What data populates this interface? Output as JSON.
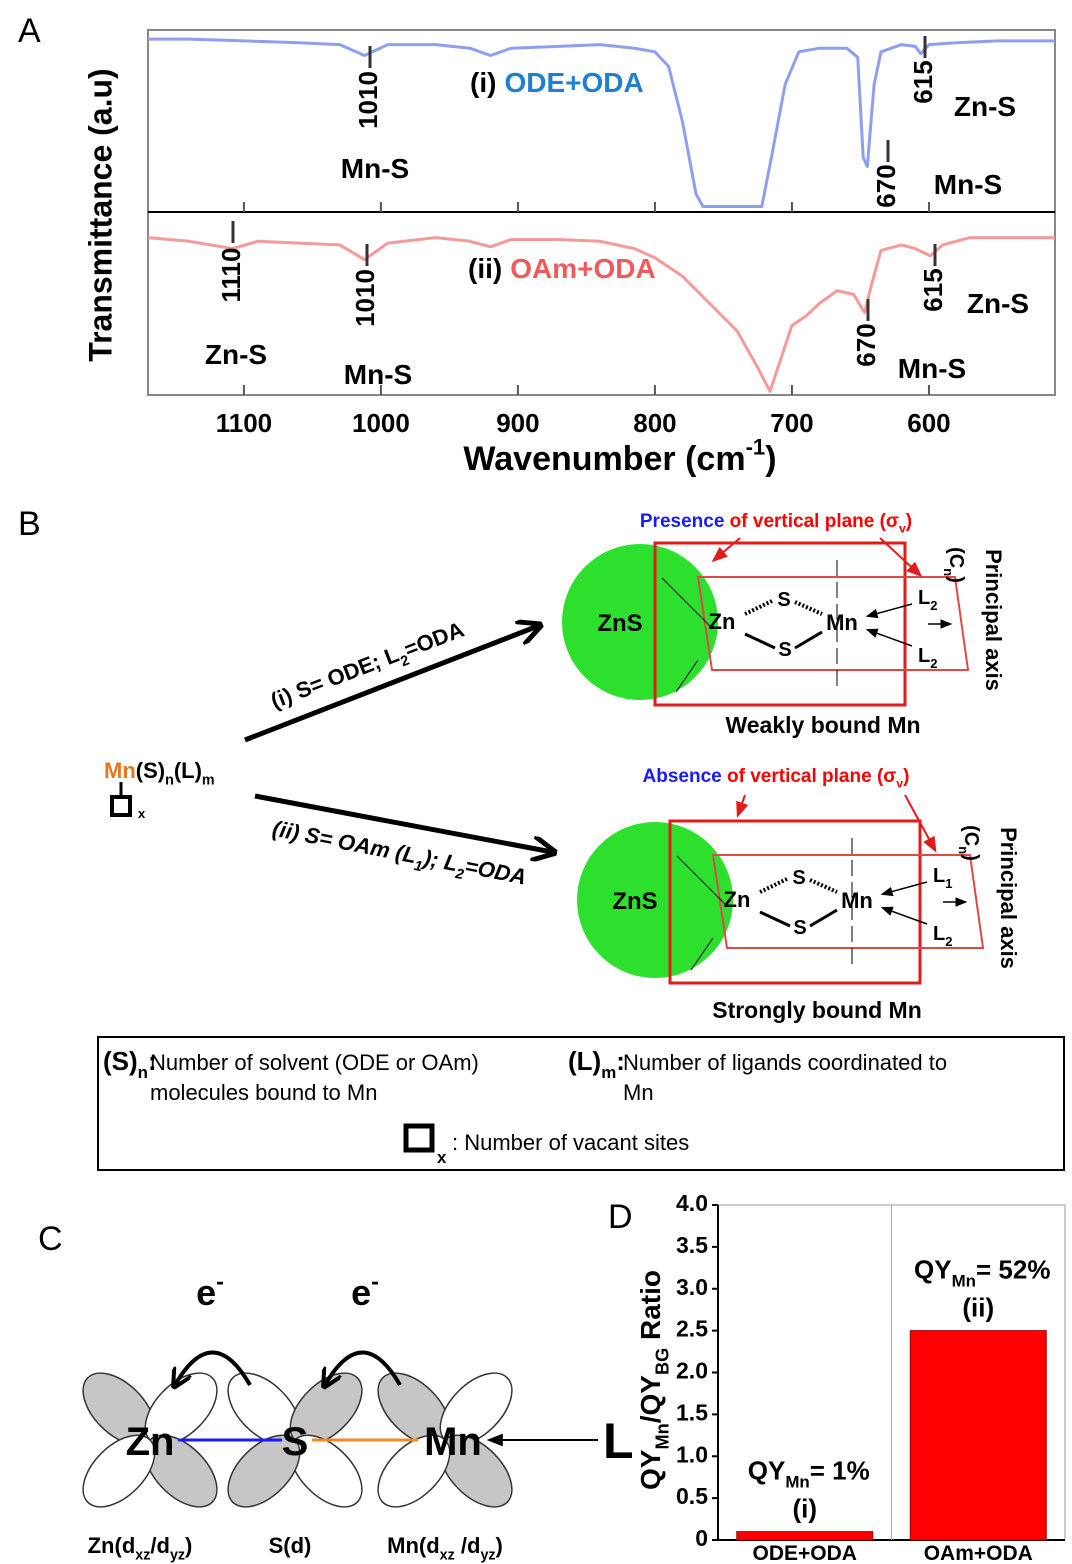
{
  "panel_labels": [
    "A",
    "B",
    "C",
    "D"
  ],
  "chart_data": [
    {
      "type": "line",
      "ylabel": "Transmittance (a.u)",
      "xlabel": [
        {
          "t": "Wavenumber (cm"
        },
        {
          "sup": "-1"
        },
        {
          "t": ")"
        }
      ],
      "xlim": [
        1170,
        508
      ],
      "xticks": [
        1100,
        1000,
        900,
        800,
        700,
        600
      ],
      "ylim": [
        0,
        100
      ],
      "series": [
        {
          "name": "ODE+ODA",
          "label": "(i)",
          "color": "#8f9ff0",
          "label_color": "#1f7fd2",
          "x": [
            1170,
            1140,
            1100,
            1060,
            1030,
            1012,
            995,
            960,
            935,
            920,
            905,
            870,
            840,
            815,
            800,
            790,
            780,
            770,
            765,
            740,
            722,
            715,
            705,
            695,
            680,
            660,
            652,
            648,
            645,
            640,
            635,
            620,
            610,
            606,
            600,
            580,
            550,
            530,
            508
          ],
          "values": [
            95,
            95,
            94,
            93,
            92,
            86,
            92,
            92,
            90,
            86,
            90,
            91,
            92,
            90,
            88,
            80,
            50,
            10,
            3,
            3,
            3,
            30,
            70,
            88,
            90,
            90,
            85,
            30,
            25,
            70,
            88,
            92,
            91,
            87,
            92,
            93,
            94,
            94,
            94
          ],
          "annotations": [
            {
              "value": 1010,
              "label": "Mn-S"
            },
            {
              "value": 670,
              "label": "Mn-S"
            },
            {
              "value": 615,
              "label": "Zn-S"
            }
          ]
        },
        {
          "name": "OAm+ODA",
          "label": "(ii)",
          "color": "#f49a9a",
          "label_color": "#f05a5a",
          "x": [
            1170,
            1140,
            1108,
            1090,
            1060,
            1030,
            1012,
            995,
            960,
            935,
            920,
            905,
            870,
            840,
            815,
            800,
            780,
            760,
            740,
            725,
            716,
            708,
            700,
            690,
            680,
            667,
            655,
            647,
            642,
            635,
            620,
            610,
            599,
            590,
            570,
            540,
            508
          ],
          "values": [
            86,
            84,
            80,
            84,
            83,
            82,
            74,
            83,
            86,
            84,
            81,
            85,
            85,
            84,
            80,
            75,
            65,
            50,
            35,
            15,
            2,
            20,
            38,
            43,
            50,
            57,
            55,
            45,
            60,
            79,
            82,
            80,
            76,
            82,
            86,
            86,
            86
          ],
          "annotations": [
            {
              "value": 1110,
              "label": "Zn-S"
            },
            {
              "value": 1010,
              "label": "Mn-S"
            },
            {
              "value": 670,
              "label": "Mn-S"
            },
            {
              "value": 615,
              "label": "Zn-S"
            }
          ]
        }
      ]
    },
    {
      "type": "bar",
      "ylabel": [
        {
          "t": "QY"
        },
        {
          "sub": "Mn"
        },
        {
          "t": "/QY"
        },
        {
          "sub": "BG"
        },
        {
          "t": " Ratio"
        }
      ],
      "categories": [
        "ODE+ODA",
        "OAm+ODA"
      ],
      "values": [
        0.1,
        2.5
      ],
      "color": "#ff0000",
      "bar_labels": [
        "(i)",
        "(ii)"
      ],
      "annotations": [
        [
          {
            "t": "QY"
          },
          {
            "sub": "Mn"
          },
          {
            "t": "= 1%"
          }
        ],
        [
          {
            "t": "QY"
          },
          {
            "sub": "Mn"
          },
          {
            "t": "= 52%"
          }
        ]
      ],
      "ylim": [
        0,
        4
      ],
      "yticks": [
        0,
        0.5,
        {
          "value": 1,
          "label": "1.0"
        },
        1.5,
        {
          "value": 2,
          "label": "2.0"
        },
        2.5,
        {
          "value": 3,
          "label": "3.0"
        },
        3.5,
        {
          "value": 4,
          "label": "4.0"
        }
      ]
    }
  ],
  "diagram_b": {
    "routes": [
      [
        {
          "t": "(i) S= ODE; L"
        },
        {
          "sub": "2"
        },
        {
          "t": "=ODA"
        }
      ],
      [
        {
          "t": "(ii) S= OAm (L"
        },
        {
          "sub": "1"
        },
        {
          "t": "); L"
        },
        {
          "sub": "2"
        },
        {
          "t": "=ODA"
        }
      ]
    ],
    "precursor": [
      {
        "t": "Mn",
        "color": "#e8761e"
      },
      {
        "t": "(S)"
      },
      {
        "sub": "n"
      },
      {
        "t": "(L)"
      },
      {
        "sub": "m"
      }
    ],
    "vacancy": [
      {
        "sub": "x"
      }
    ],
    "complexes": [
      {
        "plane_note": [
          {
            "t": "Presence",
            "color": "#1a1aff"
          },
          {
            "t": " of vertical plane (σ",
            "color": "#ff0000"
          },
          {
            "sub": "v",
            "color": "#ff0000"
          },
          {
            "t": ")",
            "color": "#ff0000"
          }
        ],
        "core": "ZnS",
        "zn": "Zn",
        "mn": "Mn",
        "s": [
          "S",
          "S"
        ],
        "ligands": [
          [
            {
              "t": "L"
            },
            {
              "sub": "2"
            }
          ],
          [
            {
              "t": "L"
            },
            {
              "sub": "2"
            }
          ]
        ],
        "axis": "Principal axis",
        "axis_symbol": [
          {
            "t": "(C"
          },
          {
            "sub": "n"
          },
          {
            "t": ")"
          }
        ],
        "caption": "Weakly bound Mn"
      },
      {
        "plane_note": [
          {
            "t": "Absence",
            "color": "#1a1aff"
          },
          {
            "t": " of vertical plane (σ",
            "color": "#ff0000"
          },
          {
            "sub": "v",
            "color": "#ff0000"
          },
          {
            "t": ")",
            "color": "#ff0000"
          }
        ],
        "core": "ZnS",
        "zn": "Zn",
        "mn": "Mn",
        "s": [
          "S",
          "S"
        ],
        "ligands": [
          [
            {
              "t": "L"
            },
            {
              "sub": "1"
            }
          ],
          [
            {
              "t": "L"
            },
            {
              "sub": "2"
            }
          ]
        ],
        "axis": "Principal axis",
        "axis_symbol": [
          {
            "t": "(C"
          },
          {
            "sub": "n"
          },
          {
            "t": ")"
          }
        ],
        "caption": "Strongly bound Mn"
      }
    ],
    "legend": [
      {
        "term": [
          {
            "t": "(S)"
          },
          {
            "sub": "n"
          },
          {
            "t": ":"
          }
        ],
        "text": [
          "Number of solvent (ODE or OAm)",
          "molecules bound to Mn"
        ]
      },
      {
        "term": [
          {
            "t": "(L)"
          },
          {
            "sub": "m"
          },
          {
            "t": ":"
          }
        ],
        "text": [
          "Number of ligands coordinated to",
          "Mn"
        ]
      },
      {
        "term": [
          {
            "sub": "x"
          }
        ],
        "text": [
          ": Number of vacant sites"
        ]
      }
    ]
  },
  "diagram_c": {
    "electrons": [
      [
        {
          "t": "e"
        },
        {
          "sup": "-"
        }
      ],
      [
        {
          "t": "e"
        },
        {
          "sup": "-"
        }
      ]
    ],
    "atoms": [
      "Zn",
      "S",
      "Mn"
    ],
    "ligand": "L",
    "orbitals": [
      [
        {
          "t": "Zn(d"
        },
        {
          "sub": "xz"
        },
        {
          "t": "/d"
        },
        {
          "sub": "yz"
        },
        {
          "t": ")"
        }
      ],
      [
        {
          "t": "S(d)"
        }
      ],
      [
        {
          "t": "Mn(d"
        },
        {
          "sub": "xz"
        },
        {
          "t": " /d"
        },
        {
          "sub": "yz"
        },
        {
          "t": ")"
        }
      ]
    ]
  }
}
